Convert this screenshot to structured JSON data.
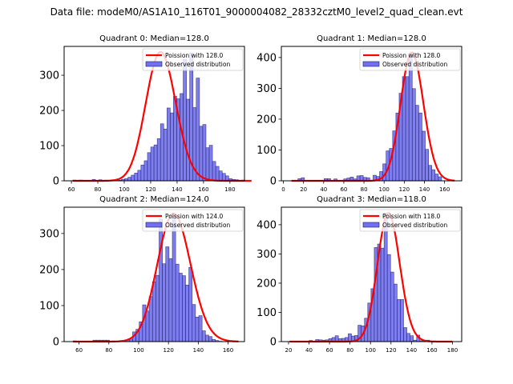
{
  "figure": {
    "suptitle": "Data file: modeM0/AS1A10_116T01_9000004082_28332cztM0_level2_quad_clean.evt"
  },
  "colors": {
    "bar_fill": "#7070f0",
    "bar_edge": "#1a1a60",
    "poisson_line": "#ff0000"
  },
  "chart_data": [
    {
      "type": "bar",
      "title": "Quadrant 0: Median=128.0",
      "legend": [
        "Poission with 128.0",
        "Observed distribution"
      ],
      "legend_position": "top-right",
      "xlim": [
        54.5,
        191
      ],
      "ylim": [
        0,
        382
      ],
      "xticks": [
        60,
        80,
        100,
        120,
        140,
        160,
        180
      ],
      "yticks": [
        0,
        100,
        200,
        300
      ],
      "bin_start": 61,
      "bin_width": 2.46,
      "values": [
        2,
        0,
        2,
        0,
        0,
        0,
        4,
        0,
        3,
        0,
        0,
        0,
        0,
        0,
        2,
        4,
        6,
        10,
        16,
        22,
        30,
        45,
        57,
        80,
        96,
        102,
        120,
        162,
        147,
        207,
        193,
        240,
        233,
        248,
        345,
        232,
        363,
        208,
        292,
        155,
        160,
        94,
        101,
        55,
        41,
        28,
        21,
        14,
        6,
        4,
        3,
        0,
        2,
        0,
        0
      ],
      "poisson_mean": 128.0,
      "poisson_peak": 366
    },
    {
      "type": "bar",
      "title": "Quadrant 1: Median=128.0",
      "legend": [
        "Poission with 128.0",
        "Observed distribution"
      ],
      "legend_position": "top-right",
      "xlim": [
        -2,
        177
      ],
      "ylim": [
        0,
        436
      ],
      "xticks": [
        0,
        20,
        40,
        60,
        80,
        100,
        120,
        140,
        160
      ],
      "yticks": [
        0,
        100,
        200,
        300,
        400
      ],
      "bin_start": 8,
      "bin_width": 3.24,
      "values": [
        0,
        0,
        7,
        10,
        0,
        0,
        0,
        0,
        0,
        0,
        7,
        7,
        0,
        6,
        0,
        0,
        6,
        9,
        12,
        6,
        16,
        17,
        11,
        10,
        0,
        18,
        14,
        30,
        55,
        97,
        105,
        162,
        220,
        284,
        338,
        338,
        414,
        299,
        245,
        220,
        161,
        102,
        50,
        36,
        22,
        13,
        0,
        0,
        0,
        0
      ],
      "poisson_mean": 128.0,
      "poisson_peak": 416
    },
    {
      "type": "bar",
      "title": "Quadrant 2: Median=124.0",
      "legend": [
        "Poission with 124.0",
        "Observed distribution"
      ],
      "legend_position": "top-right",
      "xlim": [
        50,
        171
      ],
      "ylim": [
        0,
        373
      ],
      "xticks": [
        60,
        80,
        100,
        120,
        140,
        160
      ],
      "yticks": [
        0,
        100,
        200,
        300
      ],
      "bin_start": 56,
      "bin_width": 2.22,
      "values": [
        2,
        0,
        0,
        0,
        0,
        0,
        4,
        4,
        4,
        4,
        4,
        0,
        0,
        0,
        0,
        0,
        5,
        7,
        27,
        34,
        55,
        102,
        85,
        125,
        166,
        184,
        340,
        216,
        263,
        230,
        354,
        215,
        190,
        183,
        157,
        206,
        103,
        68,
        72,
        30,
        18,
        14,
        6,
        3,
        1,
        0,
        0,
        0,
        0,
        0
      ],
      "poisson_mean": 124.0,
      "poisson_peak": 355
    },
    {
      "type": "bar",
      "title": "Quadrant 3: Median=118.0",
      "legend": [
        "Poission with 118.0",
        "Observed distribution"
      ],
      "legend_position": "top-right",
      "xlim": [
        13,
        189
      ],
      "ylim": [
        0,
        460
      ],
      "xticks": [
        20,
        40,
        60,
        80,
        100,
        120,
        140,
        160,
        180
      ],
      "yticks": [
        0,
        100,
        200,
        300,
        400
      ],
      "bin_start": 21,
      "bin_width": 3.18,
      "values": [
        0,
        0,
        0,
        0,
        0,
        0,
        4,
        0,
        7,
        6,
        5,
        6,
        10,
        14,
        20,
        10,
        11,
        14,
        27,
        19,
        21,
        56,
        54,
        80,
        132,
        181,
        322,
        334,
        320,
        440,
        298,
        238,
        197,
        144,
        144,
        48,
        28,
        20,
        5,
        22,
        3,
        0,
        5,
        0,
        0,
        0,
        0,
        0,
        0,
        0
      ],
      "poisson_mean": 118.0,
      "poisson_peak": 440
    }
  ]
}
